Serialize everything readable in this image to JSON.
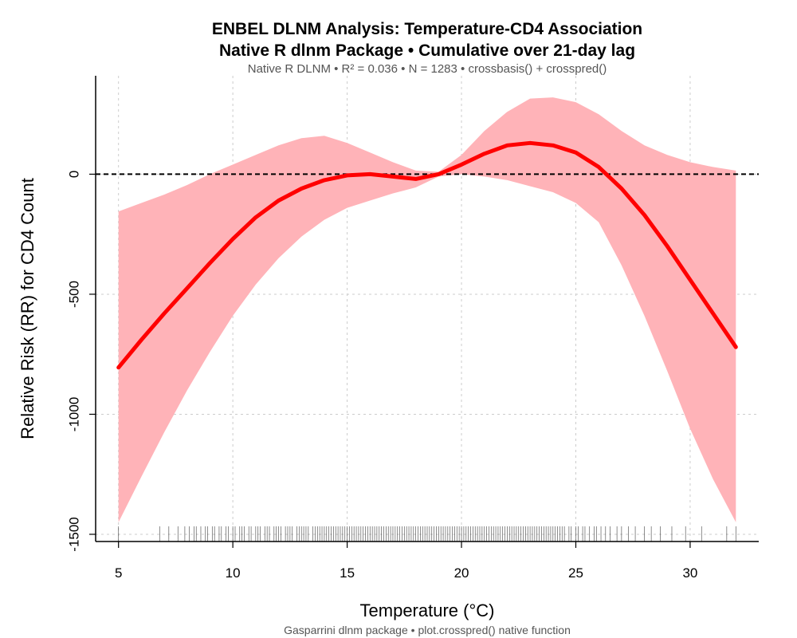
{
  "chart_data": {
    "type": "line",
    "title": "ENBEL DLNM Analysis: Temperature-CD4 Association",
    "title_line2": "Native R dlnm Package • Cumulative over 21-day lag",
    "subtitle": "Native R DLNM • R² = 0.036 • N = 1283 • crossbasis() + crosspred()",
    "caption": "Gasparrini dlnm package • plot.crosspred() native function",
    "xlabel": "Temperature (°C)",
    "ylabel": "Relative Risk (RR) for CD4 Count",
    "xlim": [
      4,
      33
    ],
    "ylim": [
      -1530,
      410
    ],
    "xticks": [
      5,
      10,
      15,
      20,
      25,
      30
    ],
    "xtick_labels": [
      "5",
      "10",
      "15",
      "20",
      "25",
      "30"
    ],
    "yticks": [
      0,
      -500,
      -1000,
      -1500
    ],
    "ytick_labels": [
      "0",
      "-500",
      "-1000",
      "-1500"
    ],
    "grid": true,
    "reference_line": 0,
    "colors": {
      "line": "#ff0000",
      "band": "#ffb3b8",
      "reference": "#000000",
      "grid": "#cccccc",
      "rug": "#333333"
    },
    "x": [
      5,
      6,
      7,
      8,
      9,
      10,
      11,
      12,
      13,
      14,
      15,
      16,
      17,
      18,
      19,
      20,
      21,
      22,
      23,
      24,
      25,
      26,
      27,
      28,
      29,
      30,
      31,
      32
    ],
    "fit": [
      -805,
      -690,
      -580,
      -475,
      -370,
      -270,
      -180,
      -110,
      -60,
      -25,
      -5,
      0,
      -10,
      -20,
      0,
      40,
      85,
      120,
      130,
      120,
      90,
      30,
      -60,
      -170,
      -300,
      -440,
      -580,
      -720
    ],
    "upper": [
      -155,
      -120,
      -85,
      -45,
      0,
      40,
      80,
      120,
      150,
      160,
      130,
      90,
      50,
      15,
      10,
      80,
      180,
      260,
      315,
      320,
      300,
      250,
      180,
      120,
      80,
      50,
      30,
      15
    ],
    "lower": [
      -1450,
      -1260,
      -1075,
      -900,
      -740,
      -590,
      -460,
      -350,
      -260,
      -190,
      -140,
      -110,
      -80,
      -55,
      -10,
      0,
      -10,
      -25,
      -50,
      -75,
      -120,
      -200,
      -380,
      -590,
      -820,
      -1060,
      -1270,
      -1450
    ],
    "rug": [
      5.0,
      6.8,
      7.2,
      7.6,
      7.9,
      8.1,
      8.3,
      8.4,
      8.6,
      8.8,
      8.9,
      9.1,
      9.2,
      9.4,
      9.5,
      9.7,
      9.8,
      10.0,
      10.1,
      10.3,
      10.4,
      10.5,
      10.7,
      10.8,
      11.0,
      11.1,
      11.2,
      11.4,
      11.5,
      11.6,
      11.8,
      11.9,
      12.0,
      12.1,
      12.3,
      12.4,
      12.5,
      12.6,
      12.8,
      12.9,
      13.0,
      13.1,
      13.2,
      13.3,
      13.5,
      13.6,
      13.7,
      13.8,
      13.9,
      14.0,
      14.1,
      14.2,
      14.3,
      14.4,
      14.5,
      14.6,
      14.7,
      14.8,
      14.9,
      15.0,
      15.1,
      15.2,
      15.3,
      15.4,
      15.5,
      15.6,
      15.7,
      15.8,
      15.9,
      16.0,
      16.1,
      16.2,
      16.3,
      16.4,
      16.5,
      16.6,
      16.7,
      16.8,
      16.9,
      17.0,
      17.1,
      17.2,
      17.3,
      17.4,
      17.5,
      17.6,
      17.7,
      17.8,
      17.9,
      18.0,
      18.1,
      18.2,
      18.3,
      18.4,
      18.5,
      18.6,
      18.7,
      18.8,
      18.9,
      19.0,
      19.1,
      19.2,
      19.3,
      19.4,
      19.5,
      19.6,
      19.7,
      19.8,
      19.9,
      20.0,
      20.1,
      20.2,
      20.3,
      20.4,
      20.5,
      20.6,
      20.7,
      20.8,
      20.9,
      21.0,
      21.1,
      21.2,
      21.3,
      21.4,
      21.5,
      21.6,
      21.7,
      21.8,
      21.9,
      22.0,
      22.1,
      22.2,
      22.3,
      22.4,
      22.5,
      22.6,
      22.7,
      22.8,
      22.9,
      23.0,
      23.1,
      23.2,
      23.3,
      23.4,
      23.5,
      23.6,
      23.7,
      23.8,
      23.9,
      24.0,
      24.1,
      24.2,
      24.3,
      24.4,
      24.5,
      24.7,
      24.8,
      25.0,
      25.1,
      25.3,
      25.4,
      25.6,
      25.8,
      25.9,
      26.1,
      26.3,
      26.5,
      26.8,
      27.0,
      27.3,
      27.6,
      28.0,
      28.3,
      28.7,
      29.2,
      29.8,
      30.5,
      31.6,
      32.0
    ]
  }
}
